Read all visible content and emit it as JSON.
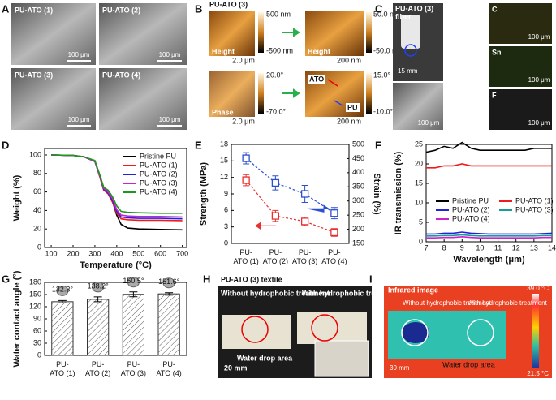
{
  "panel_letters": [
    "A",
    "B",
    "C",
    "D",
    "E",
    "F",
    "G",
    "H",
    "I"
  ],
  "panel_a": {
    "labels": [
      "PU-ATO (1)",
      "PU-ATO (2)",
      "PU-ATO (3)",
      "PU-ATO (4)"
    ],
    "scale_bar": "100 μm"
  },
  "panel_b": {
    "title": "PU-ATO (3)",
    "height": "Height",
    "phase": "Phase",
    "scale_large": "2.0 μm",
    "scale_small": "200 nm",
    "colorbars": [
      [
        "500 nm",
        "-500 nm"
      ],
      [
        "50.0 nm",
        "-50.0 nm"
      ],
      [
        "20.0°",
        "-70.0°"
      ],
      [
        "15.0°",
        "-10.0°"
      ]
    ],
    "ato": "ATO",
    "pu": "PU"
  },
  "panel_c": {
    "title": "PU-ATO (3)",
    "subtitle": "fiber",
    "scale_fiber": "15 mm",
    "scale_bar": "100 μm",
    "elements": [
      "C",
      "Sn",
      "F"
    ]
  },
  "panel_h": {
    "title": "PU-ATO (3) textile",
    "without": "Without hydrophobic treatment",
    "with": "With hydrophobic treatment",
    "drop": "Water drop area",
    "scale_bar": "20 mm"
  },
  "panel_i": {
    "title": "Infrared image",
    "without": "Without hydrophobic treatment",
    "with": "With hydrophobic treatment",
    "drop": "Water drop area",
    "scale_bar": "30 mm",
    "colorbar": [
      "39.0 °C",
      "21.5 °C"
    ]
  },
  "chart_data": [
    {
      "type": "line",
      "xlabel": "Temperature (°C)",
      "ylabel": "Weight (%)",
      "x": [
        100,
        200,
        250,
        300,
        320,
        340,
        360,
        380,
        400,
        420,
        450,
        500,
        600,
        700
      ],
      "xlim": [
        70,
        720
      ],
      "xticks": [
        100,
        200,
        300,
        400,
        500,
        600,
        700
      ],
      "ylim": [
        0,
        107
      ],
      "yticks": [
        0,
        20,
        40,
        60,
        80,
        100
      ],
      "legend": "upper right",
      "series": [
        {
          "name": "Pristine PU",
          "color": "#000000",
          "values": [
            100,
            99.5,
            98,
            93,
            80,
            65,
            60,
            50,
            35,
            25,
            21,
            20,
            19.5,
            19
          ]
        },
        {
          "name": "PU-ATO (1)",
          "color": "#ee1c1c",
          "values": [
            100,
            99.5,
            98,
            93,
            78,
            62,
            58,
            49,
            37,
            31,
            30,
            29.5,
            29.5,
            29
          ]
        },
        {
          "name": "PU-ATO (2)",
          "color": "#2222dd",
          "values": [
            100,
            99.5,
            98,
            93,
            79,
            63,
            59,
            51,
            39,
            33,
            32,
            31.5,
            31.5,
            31
          ]
        },
        {
          "name": "PU-ATO (3)",
          "color": "#cc22cc",
          "values": [
            100,
            99.5,
            98,
            93,
            79,
            64,
            60,
            53,
            41,
            35,
            34,
            33.5,
            33.5,
            33
          ]
        },
        {
          "name": "PU-ATO (4)",
          "color": "#1a9a1a",
          "values": [
            100,
            99.5,
            98,
            94,
            80,
            65,
            62,
            55,
            45,
            39,
            38,
            37.5,
            37,
            37
          ]
        }
      ]
    },
    {
      "type": "line",
      "ylabel": "Strength (MPa)",
      "y2label": "Strain (%)",
      "categories": [
        "PU-ATO (1)",
        "PU-ATO (2)",
        "PU-ATO (3)",
        "PU-ATO (4)"
      ],
      "ylim": [
        0,
        18
      ],
      "yticks": [
        0,
        3,
        6,
        9,
        12,
        15,
        18
      ],
      "y2lim": [
        150,
        500
      ],
      "y2ticks": [
        150,
        200,
        250,
        300,
        350,
        400,
        450,
        500
      ],
      "series": [
        {
          "color": "#e83030",
          "linestyle": "dashed",
          "marker": "square",
          "values": [
            11.5,
            5,
            4,
            2
          ],
          "errors": [
            1,
            1,
            0.8,
            0.7
          ]
        },
        {
          "color": "#2a4fd0",
          "linestyle": "dashed",
          "marker": "square",
          "axis": "y2",
          "values": [
            451,
            364,
            325,
            257
          ],
          "errors": [
            20,
            25,
            30,
            20
          ]
        }
      ]
    },
    {
      "type": "line",
      "xlabel": "Wavelength (μm)",
      "ylabel": "IR transmission (%)",
      "x": [
        7,
        7.5,
        8,
        8.5,
        9,
        9.5,
        10,
        10.5,
        11,
        11.5,
        12,
        12.5,
        13,
        13.5,
        14
      ],
      "xlim": [
        7,
        14
      ],
      "xticks": [
        7,
        8,
        9,
        10,
        11,
        12,
        13,
        14
      ],
      "ylim": [
        0,
        25
      ],
      "yticks": [
        0,
        5,
        10,
        15,
        20,
        25
      ],
      "legend": "lower center",
      "series": [
        {
          "name": "Pristine PU",
          "color": "#000000",
          "values": [
            23,
            23.5,
            24.5,
            24,
            25.5,
            24,
            23.5,
            23.5,
            23.5,
            23.5,
            23.5,
            23.5,
            24,
            24,
            24
          ]
        },
        {
          "name": "PU-ATO (1)",
          "color": "#ee1c1c",
          "values": [
            19,
            19,
            19.5,
            19.5,
            20,
            19.5,
            19.5,
            19.5,
            19.5,
            19.5,
            19.5,
            19.5,
            19.5,
            19.5,
            19.5
          ]
        },
        {
          "name": "PU-ATO (2)",
          "color": "#2222dd",
          "values": [
            2,
            2,
            2.2,
            2.2,
            2.5,
            2.2,
            2.1,
            2,
            2,
            2,
            2,
            2,
            2,
            2.1,
            2.2
          ]
        },
        {
          "name": "PU-ATO (3)",
          "color": "#1a9a9a",
          "values": [
            1.5,
            1.5,
            1.6,
            1.6,
            1.8,
            1.6,
            1.5,
            1.5,
            1.5,
            1.5,
            1.5,
            1.5,
            1.5,
            1.6,
            1.6
          ]
        },
        {
          "name": "PU-ATO (4)",
          "color": "#cc22cc",
          "values": [
            1,
            1,
            1.1,
            1.1,
            1.3,
            1.1,
            1,
            1,
            1,
            1,
            1,
            1,
            1,
            1.1,
            1.1
          ]
        }
      ]
    },
    {
      "type": "bar",
      "ylabel": "Water contact angle (°)",
      "categories": [
        "PU-ATO (1)",
        "PU-ATO (2)",
        "PU-ATO (3)",
        "PU-ATO (4)"
      ],
      "values": [
        132.3,
        138.2,
        150.5,
        151.6
      ],
      "value_labels": [
        "132.3°",
        "138.2°",
        "150.5°",
        "151.6°"
      ],
      "errors": [
        3,
        6,
        6,
        3
      ],
      "color": "#ffffff",
      "ylim": [
        0,
        180
      ],
      "yticks": [
        0,
        30,
        60,
        90,
        120,
        150,
        180
      ]
    }
  ]
}
